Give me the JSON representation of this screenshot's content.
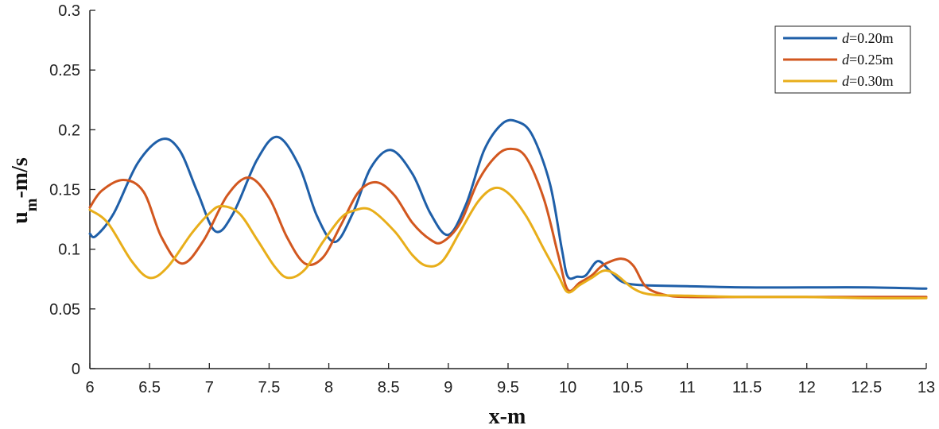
{
  "chart_data": {
    "type": "line",
    "xlabel": "x-m",
    "ylabel": {
      "main": "u",
      "subscript": "m",
      "suffix": "-m/s"
    },
    "xlim": [
      6,
      13
    ],
    "ylim": [
      0,
      0.3
    ],
    "xticks": [
      "6",
      "6.5",
      "7",
      "7.5",
      "8",
      "8.5",
      "9",
      "9.5",
      "10",
      "10.5",
      "11",
      "11.5",
      "12",
      "12.5",
      "13"
    ],
    "yticks": [
      "0",
      "0.05",
      "0.1",
      "0.15",
      "0.2",
      "0.25",
      "0.3"
    ],
    "grid": false,
    "legend_position": "top-right",
    "series": [
      {
        "name": "d=0.20m",
        "legend": {
          "var": "d",
          "rest": "=0.20m"
        },
        "color": "#1f5fa8",
        "x": [
          6,
          6.05,
          6.2,
          6.4,
          6.6,
          6.75,
          6.9,
          7.05,
          7.2,
          7.4,
          7.57,
          7.75,
          7.9,
          8.05,
          8.2,
          8.35,
          8.52,
          8.7,
          8.85,
          9.0,
          9.15,
          9.3,
          9.45,
          9.57,
          9.7,
          9.85,
          9.95,
          10.0,
          10.08,
          10.15,
          10.25,
          10.35,
          10.45,
          10.6,
          11.0,
          11.5,
          12.0,
          12.5,
          13.0
        ],
        "y": [
          0.113,
          0.111,
          0.13,
          0.172,
          0.192,
          0.183,
          0.148,
          0.115,
          0.13,
          0.175,
          0.194,
          0.17,
          0.128,
          0.106,
          0.13,
          0.168,
          0.183,
          0.163,
          0.13,
          0.112,
          0.138,
          0.183,
          0.205,
          0.207,
          0.196,
          0.155,
          0.1,
          0.077,
          0.077,
          0.078,
          0.09,
          0.082,
          0.073,
          0.07,
          0.069,
          0.068,
          0.068,
          0.068,
          0.067
        ]
      },
      {
        "name": "d=0.25m",
        "legend": {
          "var": "d",
          "rest": "=0.25m"
        },
        "color": "#d2571f",
        "x": [
          6,
          6.1,
          6.28,
          6.45,
          6.6,
          6.77,
          6.95,
          7.15,
          7.33,
          7.5,
          7.65,
          7.8,
          7.95,
          8.1,
          8.25,
          8.4,
          8.55,
          8.7,
          8.85,
          8.95,
          9.1,
          9.25,
          9.4,
          9.52,
          9.65,
          9.8,
          9.92,
          10.0,
          10.1,
          10.2,
          10.3,
          10.45,
          10.55,
          10.65,
          10.8,
          11.0,
          11.5,
          12.0,
          12.5,
          13.0
        ],
        "y": [
          0.135,
          0.149,
          0.158,
          0.148,
          0.11,
          0.088,
          0.107,
          0.145,
          0.16,
          0.143,
          0.11,
          0.088,
          0.093,
          0.12,
          0.148,
          0.156,
          0.145,
          0.122,
          0.108,
          0.106,
          0.122,
          0.157,
          0.178,
          0.184,
          0.177,
          0.142,
          0.095,
          0.066,
          0.072,
          0.078,
          0.087,
          0.092,
          0.086,
          0.069,
          0.062,
          0.06,
          0.06,
          0.06,
          0.06,
          0.06
        ]
      },
      {
        "name": "d=0.30m",
        "legend": {
          "var": "d",
          "rest": "=0.30m"
        },
        "color": "#e8ae1a",
        "x": [
          6,
          6.15,
          6.35,
          6.5,
          6.65,
          6.85,
          7.0,
          7.1,
          7.25,
          7.4,
          7.55,
          7.66,
          7.8,
          7.95,
          8.1,
          8.2,
          8.35,
          8.55,
          8.7,
          8.82,
          8.95,
          9.1,
          9.25,
          9.38,
          9.5,
          9.65,
          9.8,
          9.92,
          10.0,
          10.1,
          10.2,
          10.3,
          10.4,
          10.55,
          10.7,
          11.0,
          11.5,
          12.0,
          12.5,
          13.0
        ],
        "y": [
          0.133,
          0.122,
          0.09,
          0.076,
          0.085,
          0.113,
          0.13,
          0.136,
          0.13,
          0.108,
          0.085,
          0.076,
          0.083,
          0.106,
          0.126,
          0.132,
          0.133,
          0.115,
          0.095,
          0.086,
          0.09,
          0.115,
          0.14,
          0.151,
          0.147,
          0.128,
          0.1,
          0.078,
          0.064,
          0.07,
          0.076,
          0.082,
          0.079,
          0.067,
          0.062,
          0.061,
          0.06,
          0.06,
          0.059,
          0.059
        ]
      }
    ]
  }
}
